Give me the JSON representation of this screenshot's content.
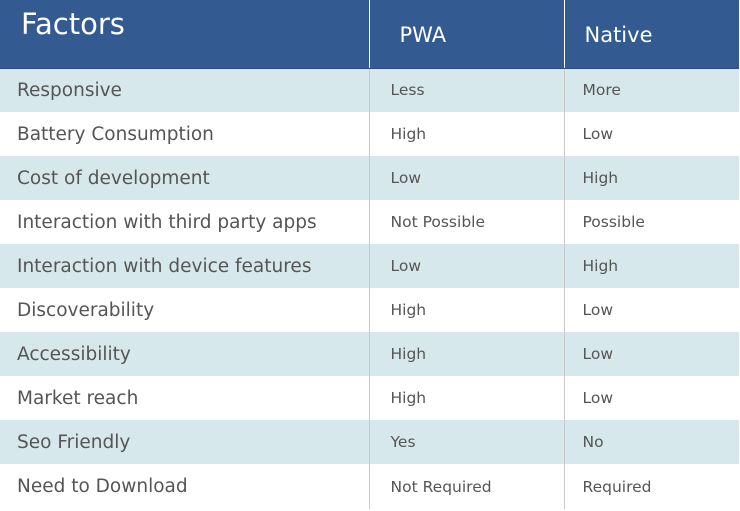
{
  "header": {
    "factors": "Factors",
    "pwa": "PWA",
    "native": "Native"
  },
  "rows": [
    {
      "factor": "Responsive",
      "pwa": "Less",
      "native": "More"
    },
    {
      "factor": "Battery Consumption",
      "pwa": "High",
      "native": "Low"
    },
    {
      "factor": "Cost of development",
      "pwa": "Low",
      "native": "High"
    },
    {
      "factor": "Interaction with third party apps",
      "pwa": "Not Possible",
      "native": "Possible"
    },
    {
      "factor": "Interaction with device features",
      "pwa": "Low",
      "native": "High"
    },
    {
      "factor": "Discoverability",
      "pwa": "High",
      "native": "Low"
    },
    {
      "factor": "Accessibility",
      "pwa": "High",
      "native": "Low"
    },
    {
      "factor": "Market reach",
      "pwa": "High",
      "native": "Low"
    },
    {
      "factor": "Seo Friendly",
      "pwa": "Yes",
      "native": "No"
    },
    {
      "factor": "Need to Download",
      "pwa": "Not Required",
      "native": "Required"
    }
  ],
  "colors": {
    "header_bg": "#335a91",
    "header_text": "#ffffff",
    "stripe_bg": "#d7e8ec",
    "row_bg": "#ffffff",
    "body_text": "#555555"
  }
}
